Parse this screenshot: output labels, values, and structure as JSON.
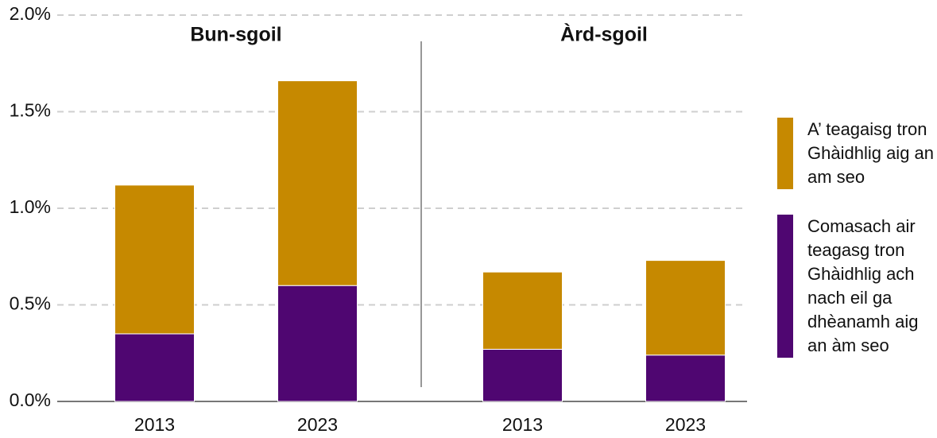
{
  "chart_data": [
    {
      "type": "bar",
      "stacked": true,
      "title": "Bun-sgoil",
      "categories": [
        "2013",
        "2023"
      ],
      "series": [
        {
          "name": "A’ teagaisg tron Ghàidhlig aig an am seo",
          "color": "#c68900",
          "values": [
            0.77,
            1.06
          ]
        },
        {
          "name": "Comasach air teagasg tron Ghàidhlig ach nach eil ga dhèanamh aig an àm seo",
          "color": "#4f0671",
          "values": [
            0.35,
            0.6
          ]
        }
      ],
      "ylim": [
        0,
        2
      ],
      "yticks": [
        {
          "value": 0,
          "label": "0.0%"
        },
        {
          "value": 0.5,
          "label": "0.5%"
        },
        {
          "value": 1,
          "label": "1.0%"
        },
        {
          "value": 1.5,
          "label": "1.5%"
        },
        {
          "value": 2,
          "label": "2.0%"
        }
      ],
      "grid": true
    },
    {
      "type": "bar",
      "stacked": true,
      "title": "Àrd-sgoil",
      "categories": [
        "2013",
        "2023"
      ],
      "series": [
        {
          "color": "#c68900",
          "values": [
            0.4,
            0.49
          ]
        },
        {
          "color": "#4f0671",
          "values": [
            0.27,
            0.24
          ]
        }
      ],
      "ylim": [
        0,
        2
      ]
    }
  ]
}
